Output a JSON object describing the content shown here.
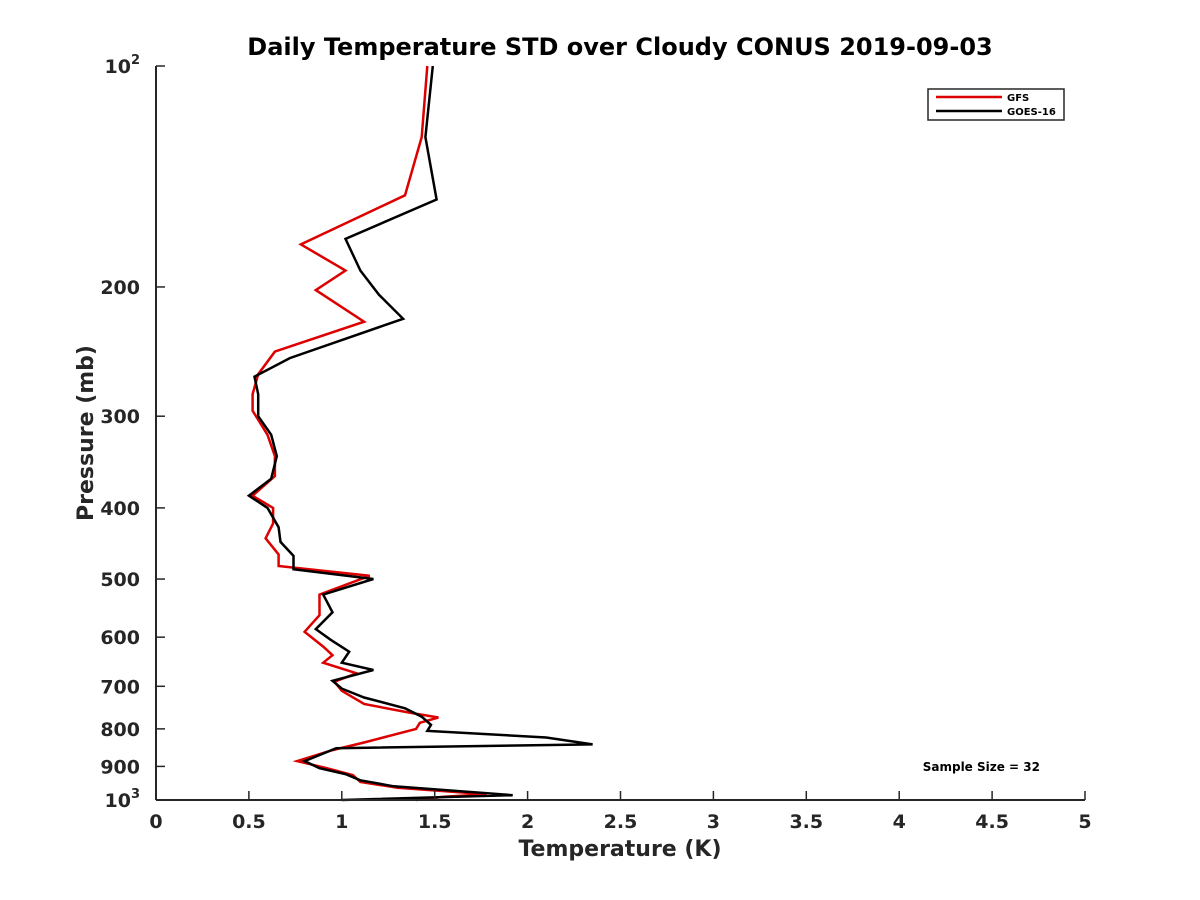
{
  "chart_data": {
    "type": "line",
    "title": "Daily Temperature STD over Cloudy CONUS 2019-09-03",
    "xlabel": "Temperature (K)",
    "ylabel": "Pressure (mb)",
    "xlim": [
      0,
      5
    ],
    "ylim": [
      100,
      1000
    ],
    "yscale": "log",
    "y_reversed": true,
    "grid": false,
    "legend_position": "top-right",
    "x_ticks": [
      0,
      0.5,
      1,
      1.5,
      2,
      2.5,
      3,
      3.5,
      4,
      4.5,
      5
    ],
    "x_tick_labels": [
      "0",
      "0.5",
      "1",
      "1.5",
      "2",
      "2.5",
      "3",
      "3.5",
      "4",
      "4.5",
      "5"
    ],
    "y_ticks": [
      {
        "value": 100,
        "base": "10",
        "exp": "2"
      },
      {
        "value": 200,
        "label": "200"
      },
      {
        "value": 300,
        "label": "300"
      },
      {
        "value": 400,
        "label": "400"
      },
      {
        "value": 500,
        "label": "500"
      },
      {
        "value": 600,
        "label": "600"
      },
      {
        "value": 700,
        "label": "700"
      },
      {
        "value": 800,
        "label": "800"
      },
      {
        "value": 900,
        "label": "900"
      },
      {
        "value": 1000,
        "base": "10",
        "exp": "3"
      }
    ],
    "annotation": "Sample Size = 32",
    "series": [
      {
        "name": "GFS",
        "color": "#dd0000",
        "points": [
          [
            1.46,
            100
          ],
          [
            1.43,
            125
          ],
          [
            1.34,
            150
          ],
          [
            0.78,
            175
          ],
          [
            1.02,
            190
          ],
          [
            0.86,
            202
          ],
          [
            1.12,
            223
          ],
          [
            0.64,
            245
          ],
          [
            0.55,
            263
          ],
          [
            0.52,
            280
          ],
          [
            0.52,
            295
          ],
          [
            0.6,
            318
          ],
          [
            0.64,
            340
          ],
          [
            0.64,
            362
          ],
          [
            0.52,
            385
          ],
          [
            0.63,
            400
          ],
          [
            0.63,
            420
          ],
          [
            0.59,
            440
          ],
          [
            0.66,
            463
          ],
          [
            0.66,
            480
          ],
          [
            1.15,
            495
          ],
          [
            0.88,
            525
          ],
          [
            0.88,
            560
          ],
          [
            0.8,
            590
          ],
          [
            0.9,
            618
          ],
          [
            0.95,
            635
          ],
          [
            0.9,
            650
          ],
          [
            1.08,
            672
          ],
          [
            0.96,
            690
          ],
          [
            1.0,
            710
          ],
          [
            1.12,
            740
          ],
          [
            1.36,
            760
          ],
          [
            1.52,
            772
          ],
          [
            1.42,
            785
          ],
          [
            1.4,
            800
          ],
          [
            1.12,
            835
          ],
          [
            0.95,
            855
          ],
          [
            0.76,
            885
          ],
          [
            0.92,
            905
          ],
          [
            1.06,
            925
          ],
          [
            1.1,
            945
          ],
          [
            1.3,
            962
          ],
          [
            1.78,
            982
          ],
          [
            1.55,
            990
          ],
          [
            1.4,
            1000
          ]
        ]
      },
      {
        "name": "GOES-16",
        "color": "#000000",
        "points": [
          [
            1.49,
            100
          ],
          [
            1.45,
            125
          ],
          [
            1.51,
            152
          ],
          [
            1.02,
            172
          ],
          [
            1.1,
            190
          ],
          [
            1.2,
            205
          ],
          [
            1.33,
            221
          ],
          [
            0.72,
            250
          ],
          [
            0.53,
            265
          ],
          [
            0.55,
            280
          ],
          [
            0.55,
            300
          ],
          [
            0.62,
            318
          ],
          [
            0.65,
            340
          ],
          [
            0.62,
            365
          ],
          [
            0.5,
            385
          ],
          [
            0.6,
            400
          ],
          [
            0.66,
            425
          ],
          [
            0.67,
            445
          ],
          [
            0.74,
            465
          ],
          [
            0.74,
            485
          ],
          [
            1.17,
            500
          ],
          [
            0.9,
            525
          ],
          [
            0.95,
            555
          ],
          [
            0.86,
            585
          ],
          [
            0.94,
            605
          ],
          [
            1.04,
            628
          ],
          [
            1.0,
            650
          ],
          [
            1.17,
            665
          ],
          [
            0.95,
            688
          ],
          [
            1.0,
            705
          ],
          [
            1.12,
            725
          ],
          [
            1.34,
            750
          ],
          [
            1.43,
            770
          ],
          [
            1.48,
            790
          ],
          [
            1.46,
            805
          ],
          [
            2.1,
            822
          ],
          [
            2.35,
            840
          ],
          [
            0.97,
            850
          ],
          [
            0.8,
            885
          ],
          [
            0.88,
            905
          ],
          [
            1.02,
            922
          ],
          [
            1.1,
            940
          ],
          [
            1.28,
            958
          ],
          [
            1.92,
            985
          ],
          [
            1.0,
            1000
          ]
        ]
      }
    ]
  }
}
